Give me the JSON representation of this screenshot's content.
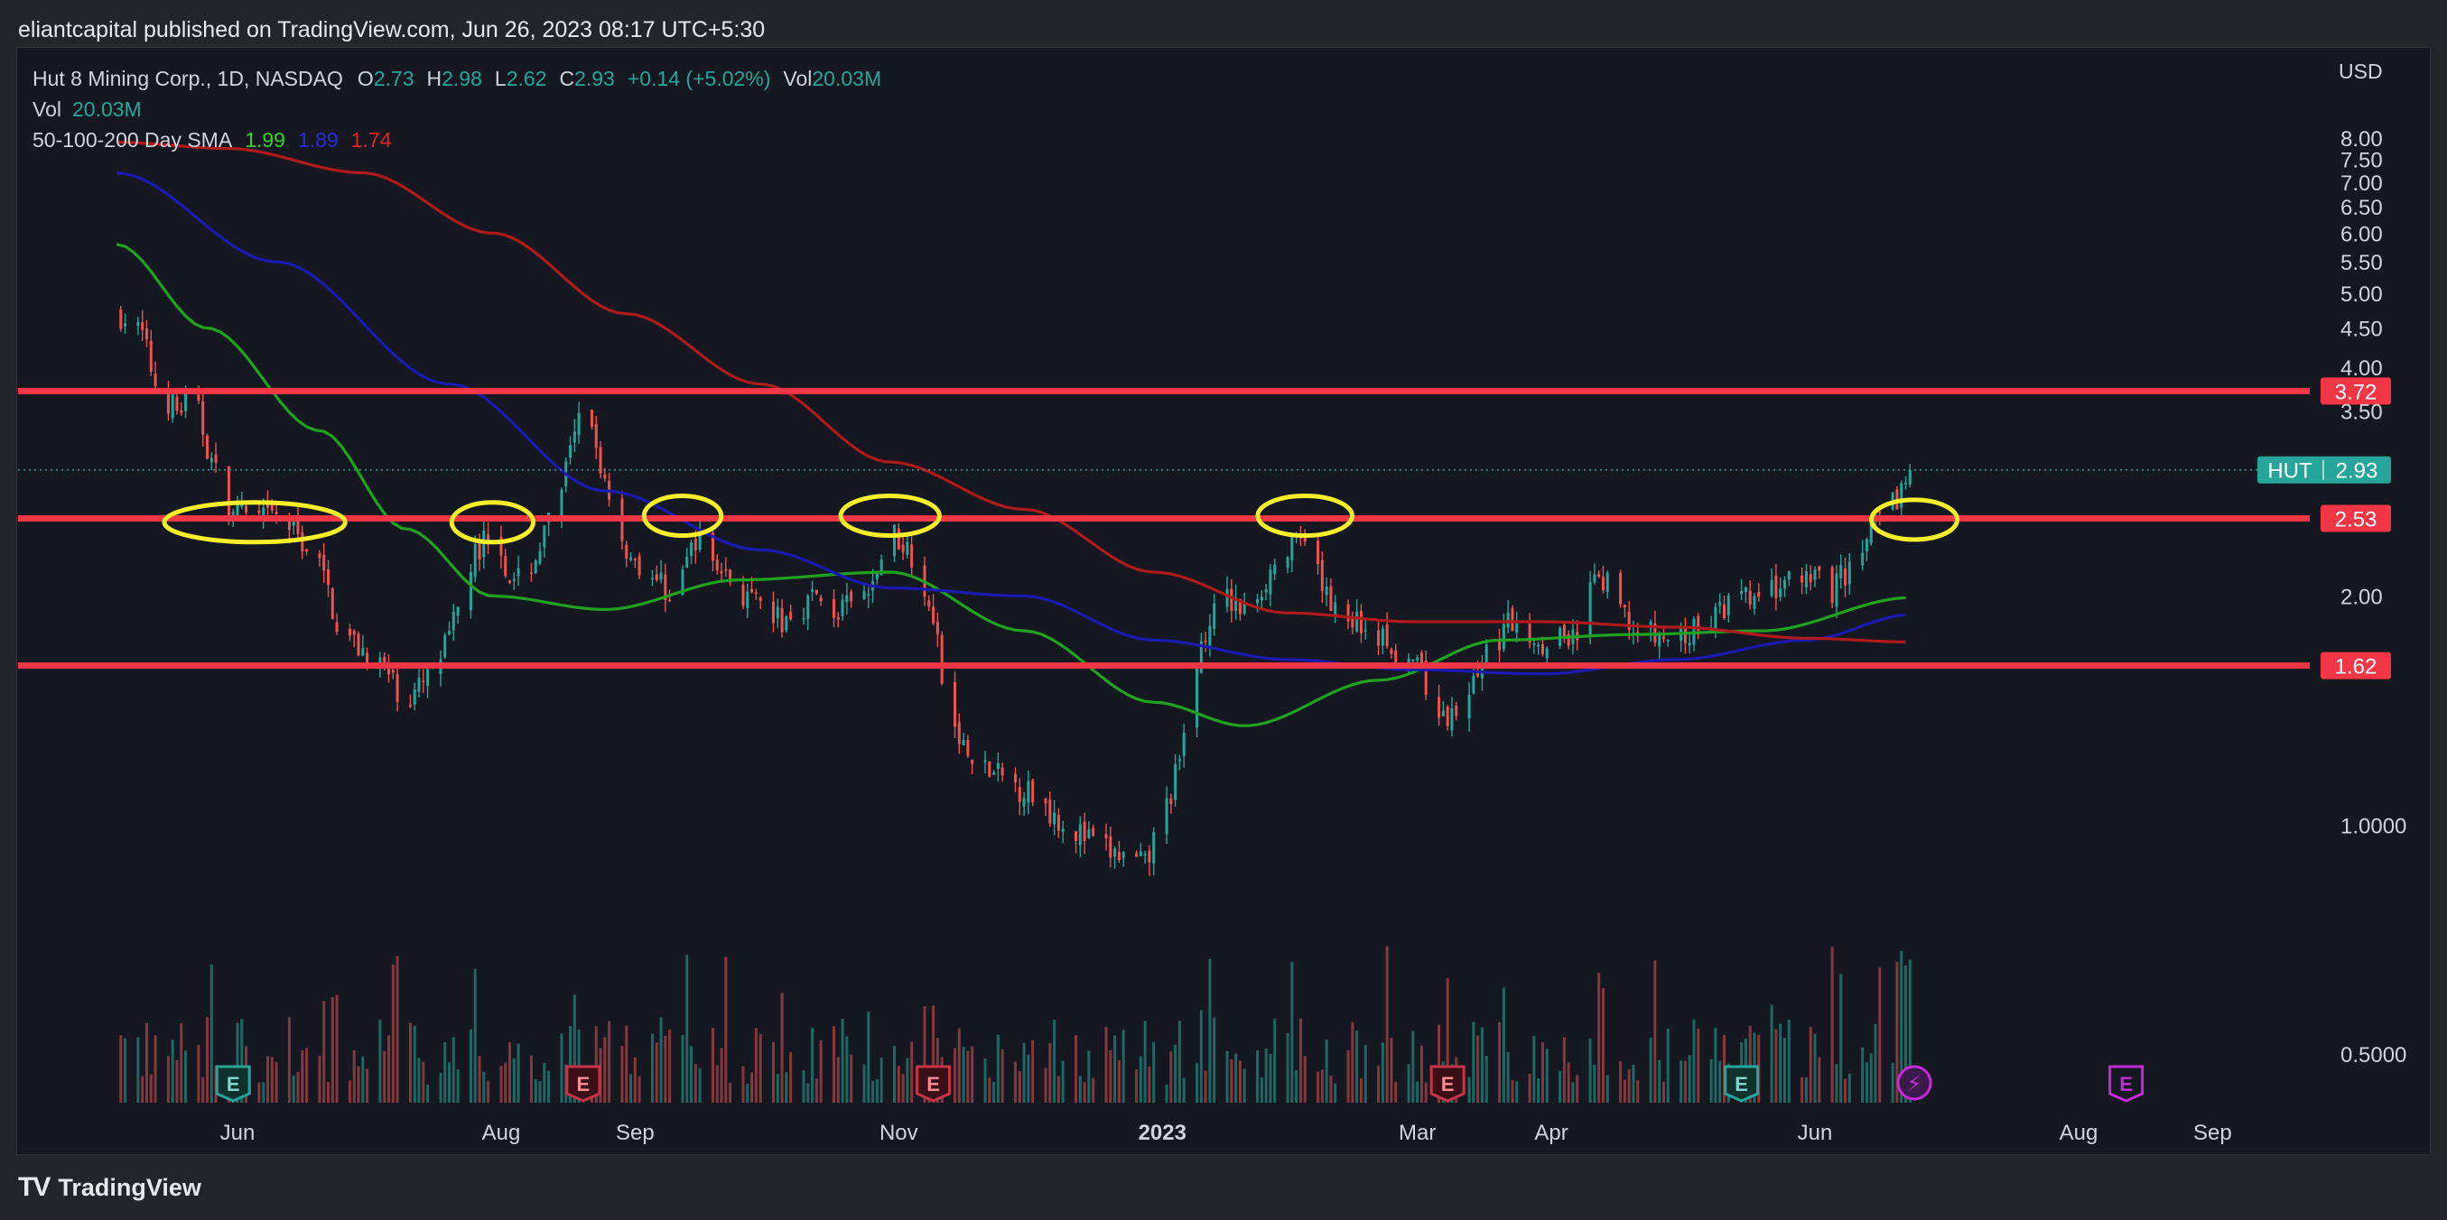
{
  "publication": {
    "text": "eliantcapital published on TradingView.com, Jun 26, 2023 08:17 UTC+5:30"
  },
  "legend": {
    "title": "Hut 8 Mining Corp., 1D, NASDAQ",
    "o_label": "O",
    "o_value": "2.73",
    "h_label": "H",
    "h_value": "2.98",
    "l_label": "L",
    "l_value": "2.62",
    "c_label": "C",
    "c_value": "2.93",
    "change": "+0.14 (+5.02%)",
    "vol_label": "Vol",
    "vol_value": "20.03M",
    "vol_row_label": "Vol",
    "vol_row_value": "20.03M",
    "sma_label": "50-100-200 Day SMA",
    "sma50_value": "1.99",
    "sma100_value": "1.89",
    "sma200_value": "1.74"
  },
  "currency": "USD",
  "footer": {
    "logo_mark": "TV",
    "brand": "TradingView"
  },
  "colors": {
    "background": "#151821",
    "up": "#26a69a",
    "down": "#ef5350",
    "up_volume": "#1f6b66",
    "down_volume": "#8b3a3e",
    "sma50": "#1fa31f",
    "sma100": "#1a1ab0",
    "sma200": "#b01a1a",
    "level_line": "#f23645",
    "annotation": "#f7ef2a",
    "earnings": "#c8334a",
    "dividend_marker": "#c22bd6"
  },
  "chart_data": {
    "type": "candlestick",
    "symbol": "HUT",
    "title": "Hut 8 Mining Corp., 1D, NASDAQ",
    "y_axis": {
      "ticks": [
        "8.00",
        "7.50",
        "7.00",
        "6.50",
        "6.00",
        "5.50",
        "5.00",
        "4.50",
        "4.00",
        "3.50",
        "2.00",
        "1.0000",
        "0.5000"
      ],
      "scale": "log",
      "range": [
        0.35,
        9.0
      ]
    },
    "x_axis": {
      "ticks": [
        "Jun",
        "Aug",
        "Sep",
        "Nov",
        "2023",
        "Mar",
        "Apr",
        "Jun",
        "Aug",
        "Sep"
      ]
    },
    "price_path": [
      [
        "2022-05-05",
        4.7
      ],
      [
        "2022-05-10",
        4.4
      ],
      [
        "2022-05-13",
        3.8
      ],
      [
        "2022-05-18",
        3.5
      ],
      [
        "2022-05-22",
        3.65
      ],
      [
        "2022-05-26",
        3.0
      ],
      [
        "2022-05-30",
        2.6
      ],
      [
        "2022-06-05",
        2.5
      ],
      [
        "2022-06-10",
        2.55
      ],
      [
        "2022-06-15",
        2.4
      ],
      [
        "2022-06-20",
        2.2
      ],
      [
        "2022-06-25",
        1.78
      ],
      [
        "2022-06-30",
        1.7
      ],
      [
        "2022-07-05",
        1.6
      ],
      [
        "2022-07-10",
        1.45
      ],
      [
        "2022-07-15",
        1.55
      ],
      [
        "2022-07-20",
        1.75
      ],
      [
        "2022-07-25",
        2.2
      ],
      [
        "2022-07-30",
        2.5
      ],
      [
        "2022-08-04",
        2.05
      ],
      [
        "2022-08-09",
        2.25
      ],
      [
        "2022-08-14",
        2.65
      ],
      [
        "2022-08-18",
        3.2
      ],
      [
        "2022-08-20",
        3.55
      ],
      [
        "2022-08-25",
        2.85
      ],
      [
        "2022-08-30",
        2.3
      ],
      [
        "2022-09-04",
        2.15
      ],
      [
        "2022-09-10",
        2.0
      ],
      [
        "2022-09-15",
        2.4
      ],
      [
        "2022-09-20",
        2.2
      ],
      [
        "2022-09-28",
        1.95
      ],
      [
        "2022-10-05",
        1.85
      ],
      [
        "2022-10-12",
        2.0
      ],
      [
        "2022-10-18",
        1.9
      ],
      [
        "2022-10-25",
        2.0
      ],
      [
        "2022-10-30",
        2.45
      ],
      [
        "2022-11-05",
        2.25
      ],
      [
        "2022-11-09",
        1.9
      ],
      [
        "2022-11-12",
        1.4
      ],
      [
        "2022-11-18",
        1.2
      ],
      [
        "2022-11-25",
        1.15
      ],
      [
        "2022-12-02",
        1.1
      ],
      [
        "2022-12-10",
        1.0
      ],
      [
        "2022-12-18",
        0.93
      ],
      [
        "2022-12-28",
        0.88
      ],
      [
        "2023-01-05",
        1.2
      ],
      [
        "2023-01-10",
        1.75
      ],
      [
        "2023-01-15",
        2.0
      ],
      [
        "2023-01-20",
        1.9
      ],
      [
        "2023-01-27",
        2.2
      ],
      [
        "2023-02-02",
        2.35
      ],
      [
        "2023-02-08",
        2.0
      ],
      [
        "2023-02-15",
        1.85
      ],
      [
        "2023-02-22",
        1.75
      ],
      [
        "2023-03-01",
        1.6
      ],
      [
        "2023-03-08",
        1.35
      ],
      [
        "2023-03-15",
        1.6
      ],
      [
        "2023-03-22",
        1.85
      ],
      [
        "2023-03-30",
        1.75
      ],
      [
        "2023-04-07",
        1.8
      ],
      [
        "2023-04-12",
        2.15
      ],
      [
        "2023-04-20",
        1.8
      ],
      [
        "2023-04-28",
        1.75
      ],
      [
        "2023-05-05",
        1.8
      ],
      [
        "2023-05-12",
        1.95
      ],
      [
        "2023-05-20",
        2.0
      ],
      [
        "2023-05-28",
        2.1
      ],
      [
        "2023-06-05",
        2.05
      ],
      [
        "2023-06-12",
        2.3
      ],
      [
        "2023-06-16",
        2.6
      ],
      [
        "2023-06-21",
        2.75
      ],
      [
        "2023-06-23",
        2.93
      ]
    ],
    "sma": [
      {
        "name": "SMA 50",
        "color": "#1fa31f",
        "value": 1.99,
        "path": [
          [
            "2022-05-04",
            5.8
          ],
          [
            "2022-05-25",
            4.5
          ],
          [
            "2022-06-20",
            3.3
          ],
          [
            "2022-07-10",
            2.45
          ],
          [
            "2022-07-30",
            2.0
          ],
          [
            "2022-08-25",
            1.92
          ],
          [
            "2022-09-25",
            2.1
          ],
          [
            "2022-10-30",
            2.15
          ],
          [
            "2022-11-30",
            1.8
          ],
          [
            "2022-12-30",
            1.45
          ],
          [
            "2023-01-20",
            1.35
          ],
          [
            "2023-02-20",
            1.55
          ],
          [
            "2023-03-20",
            1.75
          ],
          [
            "2023-04-20",
            1.78
          ],
          [
            "2023-05-20",
            1.8
          ],
          [
            "2023-06-23",
            1.99
          ]
        ]
      },
      {
        "name": "SMA 100",
        "color": "#1a1ab0",
        "value": 1.89,
        "path": [
          [
            "2022-05-04",
            7.2
          ],
          [
            "2022-06-10",
            5.5
          ],
          [
            "2022-07-20",
            3.8
          ],
          [
            "2022-08-25",
            2.75
          ],
          [
            "2022-09-30",
            2.3
          ],
          [
            "2022-10-30",
            2.05
          ],
          [
            "2022-11-30",
            2.0
          ],
          [
            "2022-12-30",
            1.75
          ],
          [
            "2023-01-30",
            1.65
          ],
          [
            "2023-02-28",
            1.6
          ],
          [
            "2023-03-30",
            1.58
          ],
          [
            "2023-04-30",
            1.65
          ],
          [
            "2023-05-30",
            1.75
          ],
          [
            "2023-06-23",
            1.89
          ]
        ]
      },
      {
        "name": "SMA 200",
        "color": "#b01a1a",
        "value": 1.74,
        "path": [
          [
            "2022-05-04",
            7.9
          ],
          [
            "2022-05-30",
            7.75
          ],
          [
            "2022-06-30",
            7.2
          ],
          [
            "2022-07-30",
            6.0
          ],
          [
            "2022-08-30",
            4.7
          ],
          [
            "2022-09-30",
            3.8
          ],
          [
            "2022-10-30",
            3.0
          ],
          [
            "2022-11-30",
            2.6
          ],
          [
            "2022-12-30",
            2.15
          ],
          [
            "2023-01-30",
            1.9
          ],
          [
            "2023-02-28",
            1.85
          ],
          [
            "2023-03-30",
            1.85
          ],
          [
            "2023-04-30",
            1.82
          ],
          [
            "2023-05-30",
            1.76
          ],
          [
            "2023-06-23",
            1.74
          ]
        ]
      }
    ],
    "levels": [
      {
        "price": 3.72,
        "label": "3.72"
      },
      {
        "price": 2.53,
        "label": "2.53"
      },
      {
        "price": 1.62,
        "label": "1.62"
      }
    ],
    "last_price": {
      "symbol": "HUT",
      "value": 2.93,
      "label": "2.93"
    },
    "annotations": [
      {
        "type": "ellipse",
        "date": "2022-06-05",
        "price": 2.5,
        "w_days": 36
      },
      {
        "type": "ellipse",
        "date": "2022-07-30",
        "price": 2.5,
        "w_days": 13
      },
      {
        "type": "ellipse",
        "date": "2022-09-12",
        "price": 2.55,
        "w_days": 12
      },
      {
        "type": "ellipse",
        "date": "2022-10-30",
        "price": 2.55,
        "w_days": 17
      },
      {
        "type": "ellipse",
        "date": "2023-02-03",
        "price": 2.55,
        "w_days": 16
      },
      {
        "type": "ellipse",
        "date": "2023-06-24",
        "price": 2.52,
        "w_days": 14
      }
    ],
    "event_markers": [
      {
        "date": "2022-05-31",
        "kind": "earnings",
        "label": "E",
        "style": "past-up"
      },
      {
        "date": "2022-08-20",
        "kind": "earnings",
        "label": "E",
        "style": "past-down"
      },
      {
        "date": "2022-11-09",
        "kind": "earnings",
        "label": "E",
        "style": "past-down"
      },
      {
        "date": "2023-03-08",
        "kind": "earnings",
        "label": "E",
        "style": "past-down"
      },
      {
        "date": "2023-05-15",
        "kind": "earnings",
        "label": "E",
        "style": "past-up"
      },
      {
        "date": "2023-06-24",
        "kind": "event",
        "label": "⚡",
        "style": "lightning"
      },
      {
        "date": "2023-08-12",
        "kind": "earnings",
        "label": "E",
        "style": "future"
      }
    ]
  }
}
